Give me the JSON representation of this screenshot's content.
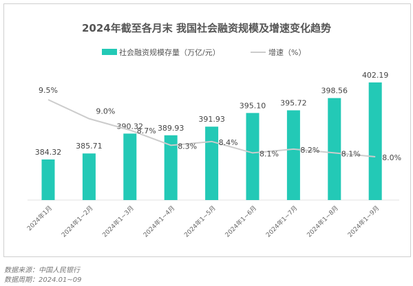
{
  "chart_data": {
    "type": "bar+line",
    "title": "2024年截至各月末 我国社会融资规模及增速变化趋势",
    "categories": [
      "2024年1月",
      "2024年1~2月",
      "2024年1~3月",
      "2024年1~4月",
      "2024年1~5月",
      "2024年1~6月",
      "2024年1~7月",
      "2024年1~8月",
      "2024年1~9月"
    ],
    "series": [
      {
        "name": "社会融资规模存量（万亿/元）",
        "type": "bar",
        "color": "#23c9b6",
        "values": [
          384.32,
          385.71,
          390.32,
          389.93,
          391.93,
          395.1,
          395.72,
          398.56,
          402.19
        ],
        "labels": [
          "384.32",
          "385.71",
          "390.32",
          "389.93",
          "391.93",
          "395.10",
          "395.72",
          "398.56",
          "402.19"
        ]
      },
      {
        "name": "增速（%）",
        "type": "line",
        "color": "#cccccc",
        "values": [
          9.5,
          9.0,
          8.7,
          8.3,
          8.4,
          8.1,
          8.2,
          8.1,
          8.0
        ],
        "labels": [
          "9.5%",
          "9.0%",
          "8.7%",
          "8.3%",
          "8.4%",
          "8.1%",
          "8.2%",
          "8.1%",
          "8.0%"
        ]
      }
    ],
    "legend": "top-center",
    "grid": false
  },
  "footer": {
    "source": "数据来源：中国人民银行",
    "period": "数据周期：2024.01~09"
  }
}
